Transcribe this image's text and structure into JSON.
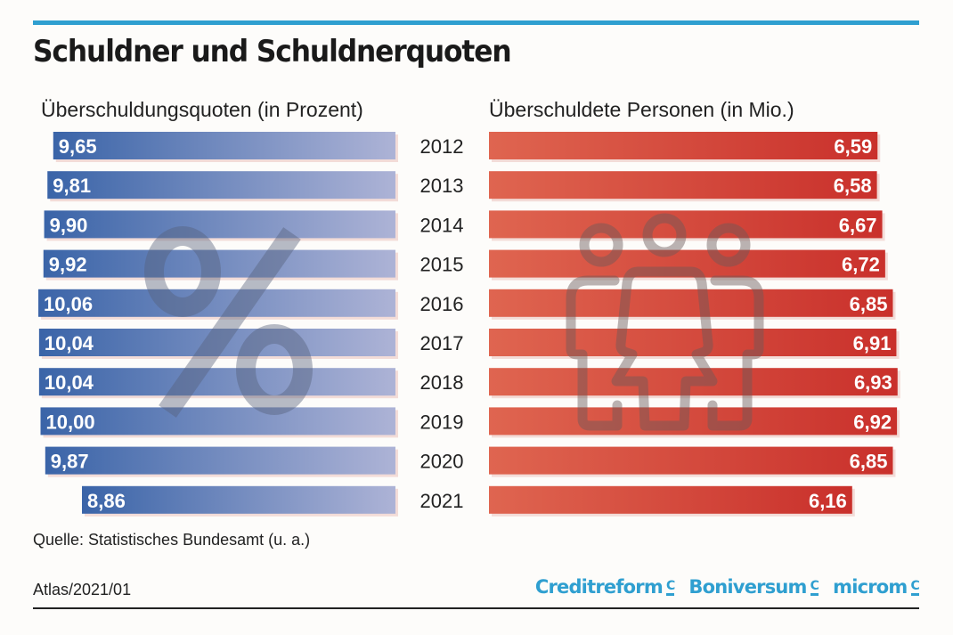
{
  "header": {
    "title": "Schuldner und Schuldnerquoten"
  },
  "chart_data": [
    {
      "type": "bar",
      "orientation": "horizontal",
      "title": "Überschuldungsquoten (in Prozent)",
      "categories": [
        "2012",
        "2013",
        "2014",
        "2015",
        "2016",
        "2017",
        "2018",
        "2019",
        "2020",
        "2021"
      ],
      "values": [
        9.65,
        9.81,
        9.9,
        9.92,
        10.06,
        10.04,
        10.04,
        10.0,
        9.87,
        8.86
      ],
      "labels": [
        "9,65",
        "9,81",
        "9,90",
        "9,92",
        "10,06",
        "10,04",
        "10,04",
        "10,00",
        "9,87",
        "8,86"
      ],
      "direction": "right-to-left",
      "color_start": "#3a64a8",
      "color_end": "#adb3d6",
      "background_icon": "percent-icon"
    },
    {
      "type": "bar",
      "orientation": "horizontal",
      "title": "Überschuldete Personen (in Mio.)",
      "categories": [
        "2012",
        "2013",
        "2014",
        "2015",
        "2016",
        "2017",
        "2018",
        "2019",
        "2020",
        "2021"
      ],
      "values": [
        6.59,
        6.58,
        6.67,
        6.72,
        6.85,
        6.91,
        6.93,
        6.92,
        6.85,
        6.16
      ],
      "labels": [
        "6,59",
        "6,58",
        "6,67",
        "6,72",
        "6,85",
        "6,91",
        "6,93",
        "6,92",
        "6,85",
        "6,16"
      ],
      "direction": "left-to-right",
      "color_start": "#df6550",
      "color_end": "#c9302b",
      "background_icon": "people-group-icon"
    }
  ],
  "footer": {
    "source": "Quelle: Statistisches Bundesamt (u. a.)",
    "atlas": "Atlas/2021/01",
    "logos": [
      "Creditreform",
      "Boniversum",
      "microm"
    ],
    "logo_mark": "C",
    "brand_color": "#2f9fd0"
  }
}
